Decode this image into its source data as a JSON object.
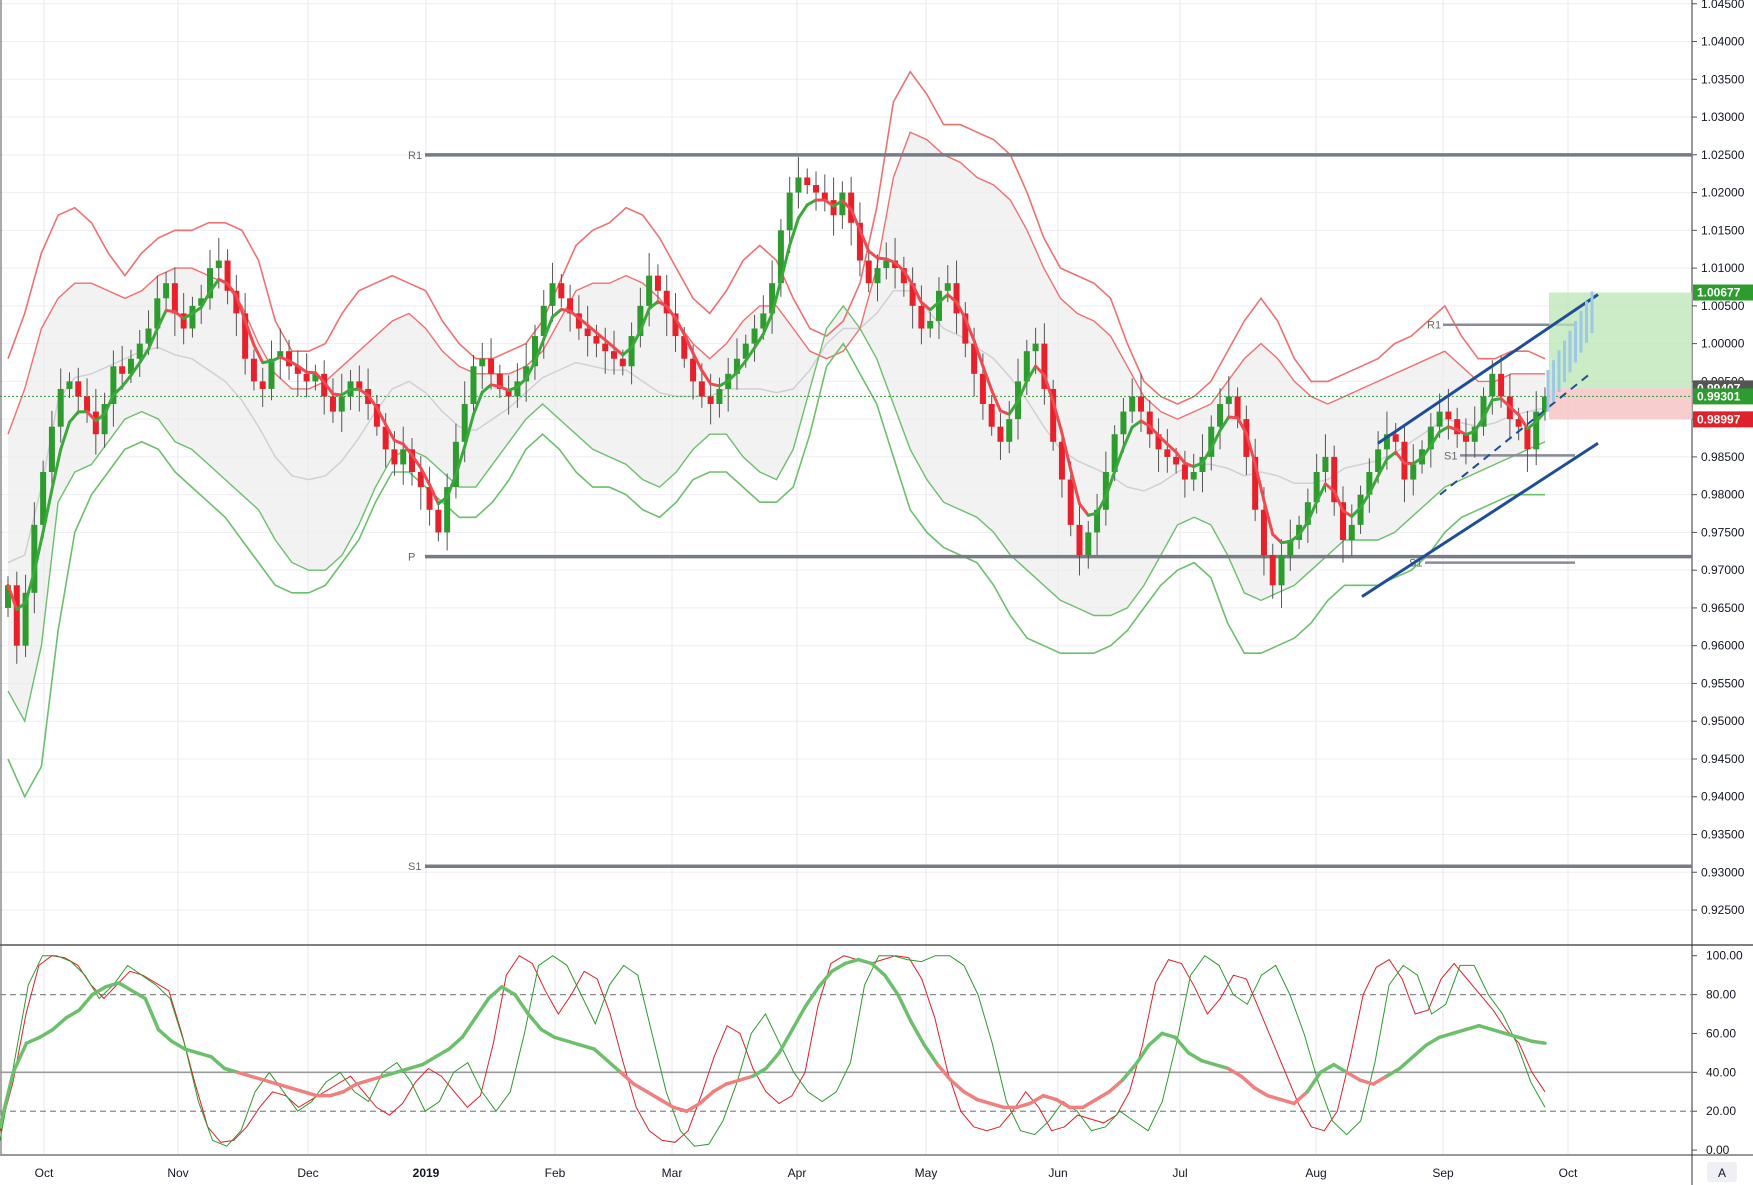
{
  "chart_data": {
    "type": "candlestick",
    "title": "",
    "x_labels": [
      "Oct",
      "Nov",
      "Dec",
      "2019",
      "Feb",
      "Mar",
      "Apr",
      "May",
      "Jun",
      "Jul",
      "Aug",
      "Sep",
      "Oct"
    ],
    "price_axis": {
      "ylim": [
        0.9205,
        1.0455
      ],
      "ticks": [
        "1.04500",
        "1.04000",
        "1.03500",
        "1.03000",
        "1.02500",
        "1.02000",
        "1.01500",
        "1.01000",
        "1.00500",
        "1.00000",
        "0.99500",
        "0.99000",
        "0.98500",
        "0.98000",
        "0.97500",
        "0.97000",
        "0.96500",
        "0.96000",
        "0.95500",
        "0.95000",
        "0.94500",
        "0.94000",
        "0.93500",
        "0.93000",
        "0.92500"
      ]
    },
    "price_tags": [
      {
        "label": "1.00677",
        "value": 1.00677,
        "color": "#2e9b2e"
      },
      {
        "label": "0.99407",
        "value": 0.99407,
        "color": "#555555"
      },
      {
        "label": "0.99301",
        "value": 0.99301,
        "color": "#2e9b2e"
      },
      {
        "label": "0.98997",
        "value": 0.98997,
        "color": "#e0202a"
      }
    ],
    "pivot_levels_long": [
      {
        "label": "R1",
        "value": 1.025
      },
      {
        "label": "P",
        "value": 0.9718
      },
      {
        "label": "S1",
        "value": 0.9308
      }
    ],
    "pivot_levels_short": [
      {
        "label": "R1",
        "value": 1.0025
      },
      {
        "label": "S1",
        "value": 0.9852
      },
      {
        "label": "S1",
        "value": 0.971
      }
    ],
    "close_series": [
      0.968,
      0.96,
      0.967,
      0.976,
      0.983,
      0.989,
      0.994,
      0.995,
      0.993,
      0.991,
      0.988,
      0.992,
      0.997,
      0.996,
      0.998,
      1.0,
      1.002,
      1.006,
      1.008,
      1.004,
      1.002,
      1.005,
      1.006,
      1.01,
      1.011,
      1.007,
      1.004,
      0.998,
      0.995,
      0.994,
      0.998,
      0.999,
      0.997,
      0.996,
      0.995,
      0.996,
      0.993,
      0.991,
      0.993,
      0.995,
      0.994,
      0.992,
      0.989,
      0.986,
      0.984,
      0.986,
      0.983,
      0.981,
      0.978,
      0.975,
      0.981,
      0.987,
      0.992,
      0.997,
      0.998,
      0.996,
      0.994,
      0.993,
      0.995,
      0.997,
      1.001,
      1.005,
      1.008,
      1.006,
      1.004,
      1.002,
      1.001,
      1.0,
      0.999,
      0.998,
      0.997,
      1.001,
      1.005,
      1.009,
      1.007,
      1.004,
      1.001,
      0.998,
      0.995,
      0.993,
      0.992,
      0.994,
      0.996,
      0.998,
      1.0,
      1.002,
      1.004,
      1.008,
      1.015,
      1.02,
      1.022,
      1.021,
      1.02,
      1.019,
      1.017,
      1.02,
      1.016,
      1.011,
      1.008,
      1.01,
      1.011,
      1.01,
      1.008,
      1.005,
      1.002,
      1.003,
      1.007,
      1.008,
      1.004,
      1.0,
      0.996,
      0.992,
      0.989,
      0.987,
      0.99,
      0.995,
      0.999,
      1.0,
      0.994,
      0.987,
      0.982,
      0.976,
      0.972,
      0.975,
      0.978,
      0.983,
      0.988,
      0.991,
      0.993,
      0.991,
      0.988,
      0.986,
      0.985,
      0.984,
      0.982,
      0.983,
      0.985,
      0.989,
      0.992,
      0.993,
      0.99,
      0.985,
      0.978,
      0.972,
      0.968,
      0.972,
      0.974,
      0.976,
      0.979,
      0.983,
      0.985,
      0.979,
      0.974,
      0.976,
      0.98,
      0.983,
      0.986,
      0.988,
      0.987,
      0.982,
      0.984,
      0.986,
      0.989,
      0.991,
      0.99,
      0.988,
      0.987,
      0.989,
      0.993,
      0.996,
      0.993,
      0.99,
      0.989,
      0.986,
      0.991,
      0.993
    ],
    "bands": {
      "upper_outer": [
        0.998,
        1.004,
        1.012,
        1.017,
        1.018,
        1.016,
        1.012,
        1.009,
        1.012,
        1.014,
        1.015,
        1.015,
        1.016,
        1.016,
        1.015,
        1.011,
        1.003,
        0.999,
        0.999,
        1.0,
        1.004,
        1.007,
        1.008,
        1.009,
        1.008,
        1.007,
        1.003,
        1.0,
        0.998,
        0.998,
        0.999,
        1.0,
        1.003,
        1.008,
        1.013,
        1.015,
        1.016,
        1.018,
        1.017,
        1.014,
        1.01,
        1.006,
        1.004,
        1.007,
        1.011,
        1.013,
        1.011,
        1.006,
        1.002,
        1.001,
        1.003,
        1.008,
        1.018,
        1.032,
        1.036,
        1.033,
        1.029,
        1.029,
        1.028,
        1.027,
        1.025,
        1.02,
        1.014,
        1.01,
        1.009,
        1.008,
        1.006,
        1.0,
        0.995,
        0.993,
        0.992,
        0.993,
        0.995,
        0.999,
        1.003,
        1.006,
        1.003,
        0.998,
        0.995,
        0.995,
        0.996,
        0.997,
        0.998,
        1.0,
        1.001,
        1.003,
        1.005,
        1.001,
        0.998,
        0.998,
        0.999,
        0.999,
        0.998
      ],
      "upper_inner": [
        0.988,
        0.994,
        1.002,
        1.006,
        1.008,
        1.008,
        1.007,
        1.006,
        1.007,
        1.009,
        1.01,
        1.01,
        1.009,
        1.008,
        1.005,
        1.0,
        0.996,
        0.994,
        0.994,
        0.995,
        0.997,
        0.999,
        1.001,
        1.003,
        1.004,
        1.002,
        0.999,
        0.997,
        0.996,
        0.996,
        0.996,
        0.997,
        0.999,
        1.003,
        1.007,
        1.008,
        1.008,
        1.009,
        1.008,
        1.006,
        1.003,
        1.0,
        0.998,
        1.0,
        1.003,
        1.005,
        1.005,
        1.002,
        0.999,
        0.998,
        0.999,
        1.002,
        1.01,
        1.022,
        1.028,
        1.027,
        1.025,
        1.024,
        1.022,
        1.021,
        1.019,
        1.015,
        1.01,
        1.006,
        1.004,
        1.003,
        1.001,
        0.997,
        0.993,
        0.991,
        0.99,
        0.991,
        0.992,
        0.995,
        0.998,
        1.0,
        0.998,
        0.995,
        0.993,
        0.992,
        0.993,
        0.994,
        0.995,
        0.996,
        0.997,
        0.998,
        0.999,
        0.997,
        0.995,
        0.995,
        0.996,
        0.996,
        0.996
      ],
      "lower_inner": [
        0.954,
        0.95,
        0.96,
        0.979,
        0.983,
        0.984,
        0.987,
        0.99,
        0.991,
        0.99,
        0.987,
        0.986,
        0.984,
        0.982,
        0.98,
        0.978,
        0.974,
        0.971,
        0.97,
        0.97,
        0.972,
        0.976,
        0.981,
        0.985,
        0.986,
        0.985,
        0.983,
        0.981,
        0.981,
        0.984,
        0.987,
        0.99,
        0.992,
        0.99,
        0.988,
        0.986,
        0.985,
        0.984,
        0.982,
        0.981,
        0.983,
        0.986,
        0.988,
        0.988,
        0.985,
        0.983,
        0.982,
        0.986,
        0.994,
        1.002,
        1.005,
        1.002,
        0.998,
        0.992,
        0.986,
        0.982,
        0.979,
        0.978,
        0.977,
        0.975,
        0.972,
        0.97,
        0.968,
        0.966,
        0.965,
        0.964,
        0.964,
        0.965,
        0.968,
        0.972,
        0.976,
        0.977,
        0.976,
        0.972,
        0.967,
        0.966,
        0.967,
        0.968,
        0.97,
        0.972,
        0.974,
        0.974,
        0.974,
        0.975,
        0.977,
        0.979,
        0.981,
        0.982,
        0.983,
        0.984,
        0.985,
        0.986,
        0.987
      ],
      "lower_outer": [
        0.945,
        0.94,
        0.944,
        0.962,
        0.975,
        0.98,
        0.983,
        0.986,
        0.987,
        0.986,
        0.983,
        0.981,
        0.979,
        0.977,
        0.974,
        0.971,
        0.968,
        0.967,
        0.967,
        0.968,
        0.971,
        0.974,
        0.979,
        0.983,
        0.983,
        0.981,
        0.979,
        0.977,
        0.977,
        0.979,
        0.982,
        0.986,
        0.988,
        0.986,
        0.983,
        0.981,
        0.981,
        0.98,
        0.978,
        0.977,
        0.979,
        0.982,
        0.983,
        0.983,
        0.981,
        0.979,
        0.979,
        0.981,
        0.988,
        0.997,
        1.0,
        0.996,
        0.992,
        0.985,
        0.978,
        0.975,
        0.973,
        0.972,
        0.971,
        0.968,
        0.964,
        0.961,
        0.96,
        0.959,
        0.959,
        0.959,
        0.96,
        0.962,
        0.965,
        0.968,
        0.97,
        0.971,
        0.969,
        0.963,
        0.959,
        0.959,
        0.96,
        0.961,
        0.963,
        0.966,
        0.968,
        0.968,
        0.968,
        0.969,
        0.97,
        0.972,
        0.975,
        0.977,
        0.978,
        0.979,
        0.98,
        0.98,
        0.98
      ]
    },
    "oscillator": {
      "ylim": [
        -2,
        105
      ],
      "ticks": [
        "100.00",
        "80.00",
        "60.00",
        "40.00",
        "20.00",
        "0.00"
      ],
      "levels": [
        80,
        40,
        20
      ],
      "series": [
        {
          "color": "#e0202a",
          "values": [
            10,
            35,
            70,
            95,
            100,
            99,
            95,
            85,
            78,
            85,
            92,
            90,
            86,
            82,
            60,
            35,
            12,
            4,
            5,
            12,
            22,
            30,
            28,
            22,
            26,
            30,
            34,
            38,
            30,
            22,
            18,
            24,
            35,
            42,
            38,
            30,
            22,
            28,
            55,
            90,
            100,
            96,
            82,
            70,
            80,
            92,
            88,
            70,
            45,
            22,
            10,
            5,
            4,
            10,
            28,
            48,
            64,
            60,
            42,
            30,
            24,
            28,
            40,
            74,
            96,
            100,
            98,
            96,
            98,
            100,
            99,
            88,
            68,
            40,
            20,
            12,
            10,
            12,
            20,
            30,
            22,
            10,
            12,
            18,
            16,
            14,
            18,
            30,
            54,
            86,
            98,
            96,
            84,
            70,
            78,
            90,
            88,
            72,
            56,
            40,
            24,
            12,
            10,
            20,
            48,
            80,
            94,
            98,
            88,
            70,
            72,
            88,
            96,
            88,
            80,
            72,
            62,
            55,
            40,
            30
          ]
        },
        {
          "color": "#2e9b2e",
          "values": [
            5,
            45,
            85,
            100,
            100,
            97,
            90,
            78,
            85,
            95,
            90,
            85,
            78,
            55,
            25,
            5,
            2,
            10,
            30,
            40,
            30,
            20,
            25,
            35,
            40,
            30,
            25,
            40,
            45,
            35,
            20,
            25,
            40,
            45,
            30,
            20,
            30,
            60,
            95,
            100,
            95,
            80,
            65,
            85,
            95,
            90,
            60,
            30,
            10,
            2,
            3,
            15,
            35,
            60,
            70,
            55,
            40,
            30,
            25,
            30,
            45,
            85,
            100,
            100,
            98,
            97,
            100,
            100,
            95,
            80,
            55,
            25,
            10,
            8,
            15,
            25,
            20,
            10,
            12,
            20,
            15,
            10,
            25,
            55,
            90,
            100,
            95,
            80,
            75,
            90,
            95,
            80,
            60,
            35,
            15,
            8,
            15,
            45,
            85,
            95,
            90,
            70,
            75,
            95,
            95,
            80,
            70,
            55,
            35,
            22
          ]
        },
        {
          "color": "#5cb85c",
          "width": 3.5,
          "values": [
            12,
            40,
            55,
            58,
            62,
            68,
            72,
            80,
            84,
            86,
            82,
            78,
            62,
            56,
            52,
            50,
            48,
            42,
            40,
            38,
            36,
            34,
            32,
            30,
            28,
            28,
            30,
            34,
            36,
            38,
            40,
            42,
            44,
            48,
            52,
            58,
            68,
            78,
            84,
            80,
            70,
            62,
            58,
            56,
            54,
            52,
            46,
            40,
            34,
            30,
            26,
            22,
            20,
            24,
            30,
            34,
            36,
            38,
            42,
            50,
            62,
            74,
            84,
            92,
            96,
            98,
            96,
            90,
            80,
            66,
            54,
            44,
            36,
            30,
            26,
            24,
            22,
            22,
            24,
            28,
            26,
            22,
            22,
            26,
            30,
            36,
            44,
            54,
            60,
            58,
            50,
            46,
            44,
            42,
            38,
            32,
            28,
            26,
            24,
            30,
            40,
            44,
            40,
            36,
            34,
            38,
            42,
            48,
            54,
            58,
            60,
            62,
            64,
            62,
            60,
            58,
            56,
            55
          ]
        }
      ]
    }
  }
}
